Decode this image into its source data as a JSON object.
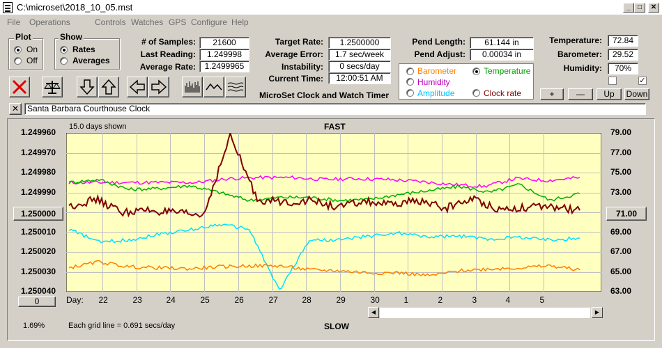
{
  "window": {
    "title": "C:\\microset\\2018_10_05.mst"
  },
  "menu": [
    "File",
    "Operations",
    "Controls",
    "Watches",
    "GPS",
    "Configure",
    "Help"
  ],
  "plot_group": {
    "title": "Plot",
    "options": [
      {
        "label": "On",
        "selected": true
      },
      {
        "label": "Off",
        "selected": false
      }
    ]
  },
  "show_group": {
    "title": "Show",
    "options": [
      {
        "label": "Rates",
        "selected": true
      },
      {
        "label": "Averages",
        "selected": false
      }
    ]
  },
  "stats": {
    "samples_label": "# of Samples:",
    "samples": "21600",
    "last_label": "Last Reading:",
    "last": "1.249998",
    "avg_rate_label": "Average Rate:",
    "avg_rate": "1.2499965"
  },
  "targets": {
    "target_label": "Target Rate:",
    "target": "1.2500000",
    "avg_err_label": "Average Error:",
    "avg_err": "1.7 sec/week",
    "instab_label": "Instability:",
    "instab": "0 secs/day",
    "time_label": "Current Time:",
    "time": "12:00:51 AM"
  },
  "app_name": "MicroSet Clock and Watch Timer",
  "pendulum": {
    "length_label": "Pend Length:",
    "length": "61.144 in",
    "adjust_label": "Pend Adjust:",
    "adjust": "0.00034 in"
  },
  "env": {
    "temp_label": "Temperature:",
    "temp": "72.84",
    "baro_label": "Barometer:",
    "baro": "29.52",
    "hum_label": "Humidity:",
    "hum": "70%"
  },
  "series_options": [
    {
      "label": "Barometer",
      "color": "#ff8000",
      "selected": false
    },
    {
      "label": "Temperature",
      "color": "#00a000",
      "selected": true
    },
    {
      "label": "Humidity",
      "color": "#c000c0",
      "selected": false
    },
    {
      "label": "Amplitude",
      "color": "#00c0ff",
      "selected": false
    },
    {
      "label": "Clock rate",
      "color": "#800000",
      "selected": false
    }
  ],
  "small_buttons": [
    "+",
    "—",
    "Up",
    "Down"
  ],
  "checkboxes": [
    {
      "checked": false
    },
    {
      "checked": true
    }
  ],
  "clock_name": "Santa Barbara Courthouse Clock",
  "close_x": "✕",
  "chart_header": {
    "days_shown": "15.0 days shown",
    "top": "FAST",
    "bottom": "SLOW"
  },
  "day_prefix": "Day:",
  "grid_note": "Each grid line = 0.691 secs/day",
  "percent": "1.69%",
  "left_button": "1.250000",
  "right_button": "71.00",
  "bottom_left_button": "0",
  "colors": {
    "panel": "#d4d0c8",
    "chart_bg": "#ffffc0",
    "rate": "#800000",
    "temp": "#00b000",
    "humidity": "#ff00ff",
    "amplitude": "#00e0ff",
    "barometer": "#ff8000"
  },
  "chart_data": {
    "type": "line",
    "x_labels": [
      "22",
      "23",
      "24",
      "25",
      "26",
      "27",
      "28",
      "29",
      "30",
      "1",
      "2",
      "3",
      "4",
      "5"
    ],
    "y_left_ticks": [
      "1.249960",
      "1.249970",
      "1.249980",
      "1.249990",
      "1.250000",
      "1.250010",
      "1.250020",
      "1.250030",
      "1.250040"
    ],
    "y_right_ticks": [
      "79.00",
      "77.00",
      "75.00",
      "73.00",
      "71.00",
      "69.00",
      "67.00",
      "65.00",
      "63.00"
    ],
    "ylim_left": [
      1.24996,
      1.25004
    ],
    "ylim_right": [
      63,
      79
    ],
    "series": [
      {
        "color": "#ff00ff",
        "values": [
          74.0,
          74.0,
          74.0,
          74.0,
          74.0,
          74.4,
          74.5,
          74.5,
          74.3,
          74.4,
          74.3,
          74.1,
          73.8,
          73.6,
          74.4,
          74.2,
          74.5
        ]
      },
      {
        "color": "#00b000",
        "values": [
          74.0,
          74.3,
          73.3,
          73.4,
          73.7,
          73.0,
          72.2,
          72.5,
          72.5,
          72.2,
          72.3,
          72.8,
          73.2,
          73.6,
          73.0,
          73.8,
          72.2,
          72.9
        ]
      },
      {
        "color": "#800000",
        "values": [
          71.6,
          72.3,
          71.0,
          71.2,
          70.9,
          70.7,
          78.7,
          72.3,
          72.0,
          72.2,
          71.5,
          72.1,
          71.7,
          72.2,
          71.4,
          72.4,
          71.3,
          71.5,
          71.5,
          71.2
        ]
      },
      {
        "color": "#00e0ff",
        "values": [
          69.3,
          68.0,
          68.2,
          68.8,
          69.2,
          69.8,
          69.3,
          63.1,
          68.2,
          68.2,
          68.6,
          68.9,
          68.5,
          68.6,
          68.3,
          68.5,
          68.2,
          68.4
        ]
      },
      {
        "color": "#ff8000",
        "values": [
          65.4,
          66.0,
          65.5,
          65.4,
          65.3,
          65.5,
          65.6,
          65.6,
          65.2,
          65.1,
          64.9,
          64.9,
          64.6,
          65.1,
          65.3,
          65.4,
          65.6,
          65.2
        ]
      }
    ]
  }
}
